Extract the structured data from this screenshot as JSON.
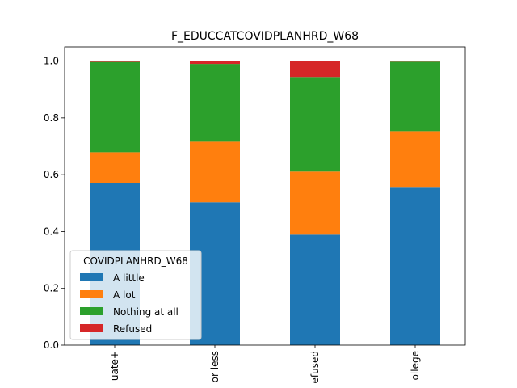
{
  "chart_data": {
    "type": "bar",
    "stacked": true,
    "title": "F_EDUCCATCOVIDPLANHRD_W68",
    "xlabel": "",
    "ylabel": "",
    "ylim": [
      0,
      1.05
    ],
    "yticks": [
      0.0,
      0.2,
      0.4,
      0.6,
      0.8,
      1.0
    ],
    "ytick_labels": [
      "0.0",
      "0.2",
      "0.4",
      "0.6",
      "0.8",
      "1.0"
    ],
    "categories": [
      "uate+",
      "or less",
      "efused",
      "ollege"
    ],
    "legend": {
      "title": "COVIDPLANHRD_W68",
      "placement": "lower-left"
    },
    "series": [
      {
        "name": "A little",
        "color": "#1f77b4",
        "values": [
          0.571,
          0.503,
          0.389,
          0.557
        ]
      },
      {
        "name": "A lot",
        "color": "#ff7f0e",
        "values": [
          0.108,
          0.213,
          0.222,
          0.196
        ]
      },
      {
        "name": "Nothing at all",
        "color": "#2ca02c",
        "values": [
          0.318,
          0.274,
          0.333,
          0.245
        ]
      },
      {
        "name": "Refused",
        "color": "#d62728",
        "values": [
          0.003,
          0.01,
          0.056,
          0.002
        ]
      }
    ],
    "grid": false
  }
}
